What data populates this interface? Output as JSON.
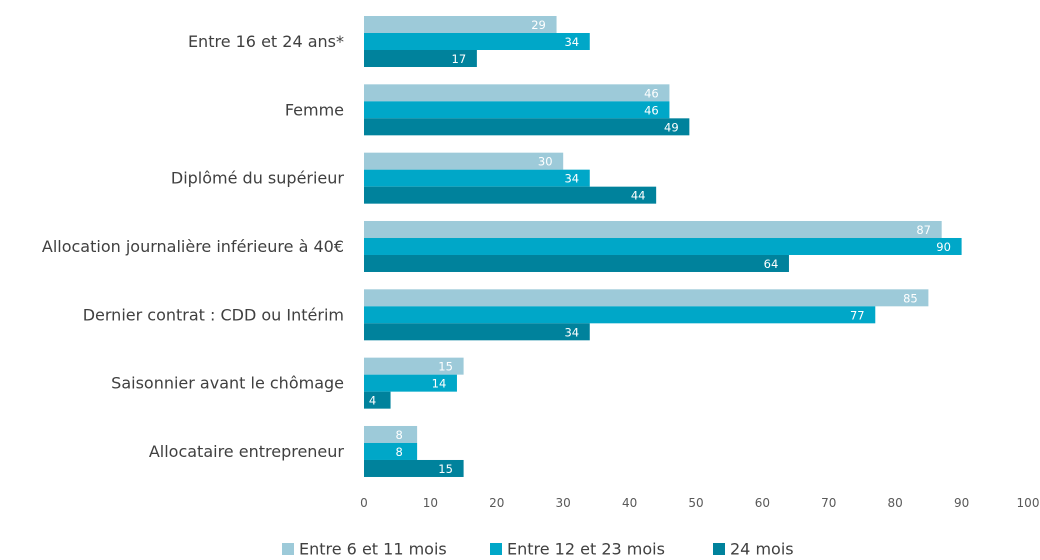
{
  "chart_data": {
    "type": "bar",
    "orientation": "horizontal",
    "categories": [
      "Entre 16 et 24 ans*",
      "Femme",
      "Diplômé du supérieur",
      "Allocation journalière inférieure à 40€",
      "Dernier contrat : CDD ou Intérim",
      "Saisonnier avant le chômage",
      "Allocataire entrepreneur"
    ],
    "series": [
      {
        "name": "Entre 6 et 11 mois",
        "color": "#9dcad9",
        "values": [
          29,
          46,
          30,
          87,
          85,
          15,
          8
        ]
      },
      {
        "name": "Entre 12 et 23 mois",
        "color": "#00a7c8",
        "values": [
          34,
          46,
          34,
          90,
          77,
          14,
          8
        ]
      },
      {
        "name": "24 mois",
        "color": "#00829c",
        "values": [
          17,
          49,
          44,
          64,
          34,
          4,
          15
        ]
      }
    ],
    "xlim": [
      0,
      100
    ],
    "xticks": [
      0,
      10,
      20,
      30,
      40,
      50,
      60,
      70,
      80,
      90,
      100
    ],
    "grid": false,
    "legend_position": "bottom"
  }
}
